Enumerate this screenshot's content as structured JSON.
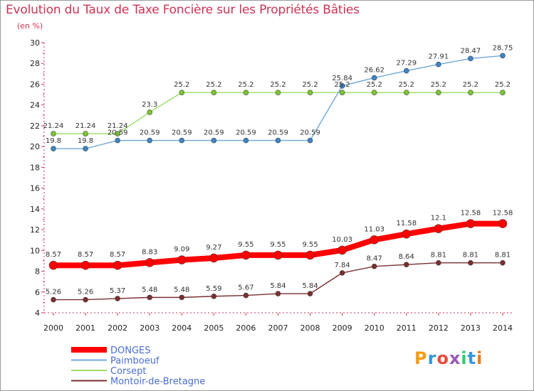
{
  "header": {
    "title": "Evolution du Taux de Taxe Foncière sur les Propriétés Bâties",
    "unit": "(en %)"
  },
  "logo": {
    "text": "Proxiti",
    "colors": [
      "#f39c12",
      "#3498db",
      "#e74c3c",
      "#9b59b6",
      "#2ecc71",
      "#3498db",
      "#e67e22"
    ]
  },
  "chart_data": {
    "type": "line",
    "title": "Evolution du Taux de Taxe Foncière sur les Propriétés Bâties",
    "ylabel": "(en %)",
    "xlabel": "",
    "x": [
      "2000",
      "2001",
      "2002",
      "2003",
      "2004",
      "2005",
      "2006",
      "2007",
      "2008",
      "2009",
      "2010",
      "2011",
      "2012",
      "2013",
      "2014"
    ],
    "ylim": [
      4,
      30
    ],
    "yticks": [
      4,
      6,
      8,
      10,
      12,
      14,
      16,
      18,
      20,
      22,
      24,
      26,
      28,
      30
    ],
    "grid": false,
    "legend_position": "bottom-left",
    "series": [
      {
        "name": "DONGES",
        "color": "#ff0000",
        "values": [
          8.57,
          8.57,
          8.57,
          8.83,
          9.09,
          9.27,
          9.55,
          9.55,
          9.55,
          10.03,
          11.03,
          11.58,
          12.1,
          12.58,
          12.58
        ],
        "labels": [
          "8.57",
          "8.57",
          "8.57",
          "8.83",
          "9.09",
          "9.27",
          "9.55",
          "9.55",
          "9.55",
          "10.03",
          "11.03",
          "11.58",
          "12.1",
          "12.58",
          "12.58"
        ]
      },
      {
        "name": "Paimboeuf",
        "color": "#6fa8dc",
        "values": [
          19.8,
          19.8,
          20.59,
          20.59,
          20.59,
          20.59,
          20.59,
          20.59,
          20.59,
          25.84,
          26.62,
          27.29,
          27.91,
          28.47,
          28.75
        ],
        "labels": [
          "19.8",
          "19.8",
          "20.59",
          "20.59",
          "20.59",
          "20.59",
          "20.59",
          "20.59",
          "20.59",
          "25.84",
          "26.62",
          "27.29",
          "27.91",
          "28.47",
          "28.75"
        ]
      },
      {
        "name": "Corsept",
        "color": "#99dd66",
        "values": [
          21.24,
          21.24,
          21.24,
          23.3,
          25.2,
          25.2,
          25.2,
          25.2,
          25.2,
          25.2,
          25.2,
          25.2,
          25.2,
          25.2,
          25.2
        ],
        "labels": [
          "21.24",
          "21.24",
          "21.24",
          "23.3",
          "25.2",
          "25.2",
          "25.2",
          "25.2",
          "25.2",
          "25.2",
          "25.2",
          "25.2",
          "25.2",
          "25.2",
          "25.2"
        ]
      },
      {
        "name": "Montoir-de-Bretagne",
        "color": "#7a2f2f",
        "values": [
          5.26,
          5.26,
          5.37,
          5.48,
          5.48,
          5.59,
          5.67,
          5.84,
          5.84,
          7.84,
          8.47,
          8.64,
          8.81,
          8.81,
          8.81
        ],
        "labels": [
          "5.26",
          "5.26",
          "5.37",
          "5.48",
          "5.48",
          "5.59",
          "5.67",
          "5.84",
          "5.84",
          "7.84",
          "8.47",
          "8.64",
          "8.81",
          "8.81",
          "8.81"
        ]
      }
    ]
  }
}
